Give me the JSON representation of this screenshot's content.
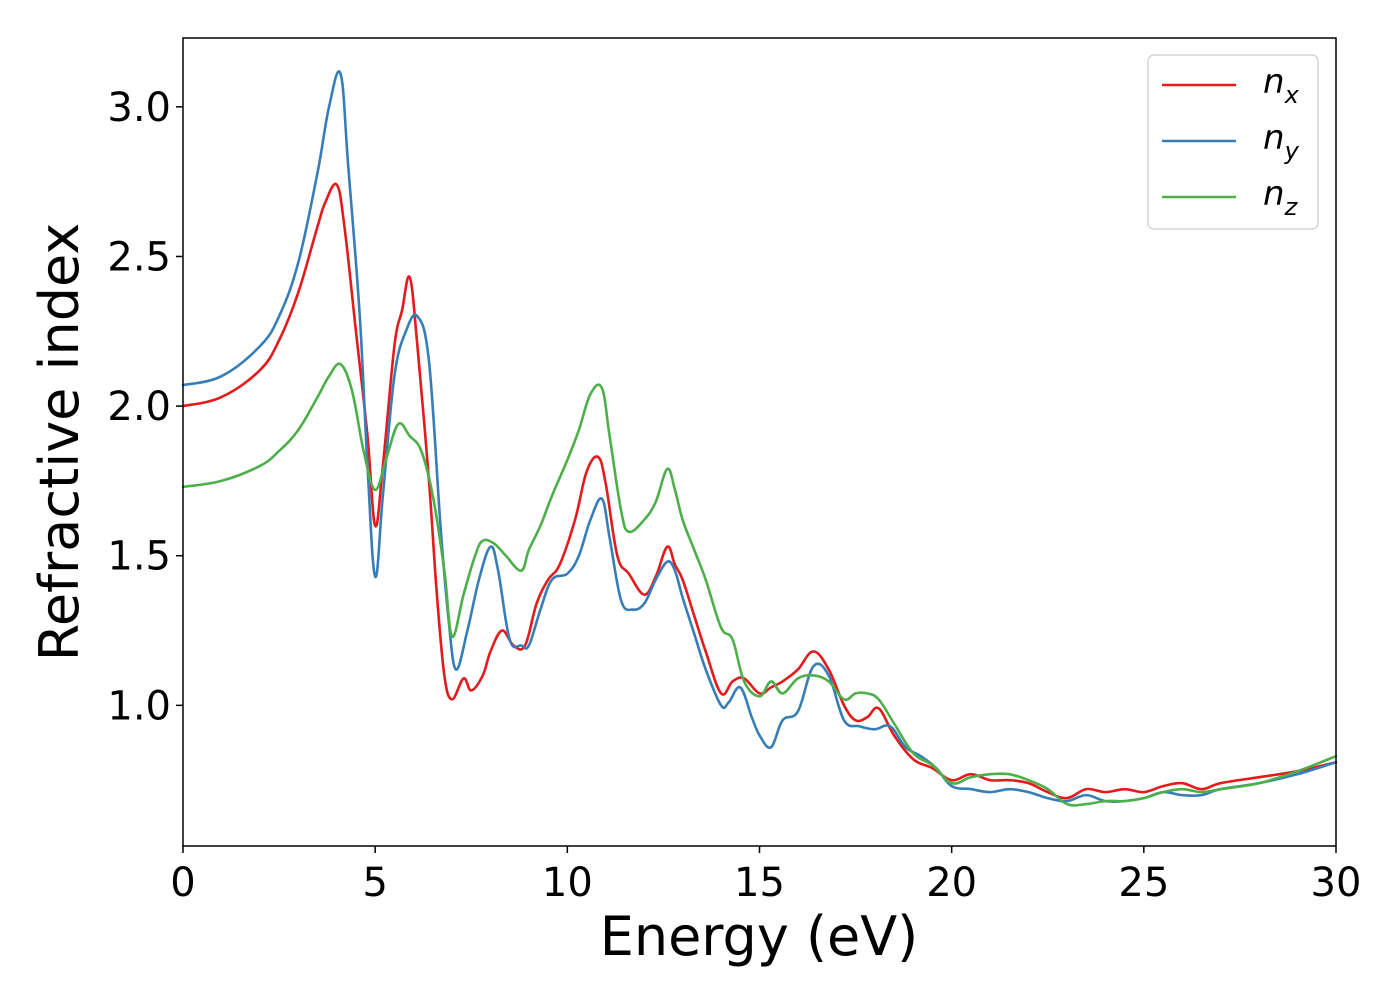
{
  "chart_data": {
    "type": "line",
    "title": "",
    "xlabel": "Energy (eV)",
    "ylabel": "Refractive index",
    "xlim": [
      0,
      30
    ],
    "ylim": [
      0.53,
      3.23
    ],
    "xticks": [
      0,
      5,
      10,
      15,
      20,
      25,
      30
    ],
    "yticks": [
      1.0,
      1.5,
      2.0,
      2.5,
      3.0
    ],
    "xtick_labels": [
      "0",
      "5",
      "10",
      "15",
      "20",
      "25",
      "30"
    ],
    "ytick_labels": [
      "1.0",
      "1.5",
      "2.0",
      "2.5",
      "3.0"
    ],
    "grid": false,
    "legend_position": "top-right",
    "series": [
      {
        "name": "n_x",
        "legend_main": "n",
        "legend_sub": "x",
        "color": "#e41a1c",
        "x": [
          0,
          1,
          2,
          2.5,
          3,
          3.5,
          3.7,
          4.0,
          4.2,
          4.5,
          4.8,
          5.0,
          5.2,
          5.5,
          5.7,
          5.9,
          6.1,
          6.4,
          6.6,
          6.8,
          7.0,
          7.3,
          7.5,
          7.8,
          8.0,
          8.3,
          8.6,
          8.9,
          9.2,
          9.5,
          9.8,
          10.2,
          10.5,
          10.8,
          11.0,
          11.3,
          11.6,
          12.0,
          12.3,
          12.6,
          12.8,
          13.0,
          13.3,
          13.6,
          14.0,
          14.3,
          14.6,
          15.0,
          15.3,
          15.6,
          16.0,
          16.4,
          16.8,
          17.2,
          17.5,
          17.8,
          18.1,
          18.5,
          19.0,
          19.5,
          20.0,
          20.5,
          21.0,
          21.5,
          22.0,
          22.5,
          23.0,
          23.5,
          24.0,
          24.5,
          25.0,
          25.5,
          26.0,
          26.5,
          27.0,
          28.0,
          29.0,
          30.0
        ],
        "y": [
          2.0,
          2.03,
          2.12,
          2.22,
          2.38,
          2.6,
          2.68,
          2.74,
          2.6,
          2.25,
          1.9,
          1.6,
          1.8,
          2.2,
          2.32,
          2.43,
          2.2,
          1.75,
          1.38,
          1.1,
          1.02,
          1.09,
          1.05,
          1.1,
          1.18,
          1.25,
          1.2,
          1.2,
          1.34,
          1.42,
          1.47,
          1.62,
          1.78,
          1.83,
          1.74,
          1.5,
          1.44,
          1.37,
          1.43,
          1.53,
          1.47,
          1.42,
          1.3,
          1.18,
          1.04,
          1.08,
          1.09,
          1.04,
          1.06,
          1.08,
          1.12,
          1.18,
          1.12,
          1.0,
          0.95,
          0.96,
          0.99,
          0.9,
          0.82,
          0.79,
          0.75,
          0.77,
          0.75,
          0.75,
          0.74,
          0.71,
          0.69,
          0.72,
          0.71,
          0.72,
          0.71,
          0.73,
          0.74,
          0.72,
          0.74,
          0.76,
          0.78,
          0.81
        ]
      },
      {
        "name": "n_y",
        "legend_main": "n",
        "legend_sub": "y",
        "color": "#377eb8",
        "x": [
          0,
          1,
          2,
          2.5,
          3,
          3.5,
          3.8,
          4.1,
          4.3,
          4.6,
          4.8,
          5.0,
          5.2,
          5.5,
          5.8,
          6.1,
          6.4,
          6.7,
          6.9,
          7.1,
          7.4,
          7.7,
          8.0,
          8.2,
          8.5,
          8.8,
          9.0,
          9.3,
          9.6,
          10.0,
          10.3,
          10.6,
          10.9,
          11.1,
          11.4,
          11.7,
          12.0,
          12.3,
          12.6,
          12.8,
          13.0,
          13.3,
          13.6,
          14.0,
          14.2,
          14.5,
          14.8,
          15.0,
          15.3,
          15.6,
          16.0,
          16.4,
          16.8,
          17.2,
          17.6,
          18.0,
          18.4,
          18.8,
          19.2,
          19.6,
          20.0,
          20.5,
          21.0,
          21.5,
          22.0,
          22.5,
          23.0,
          23.5,
          24.0,
          24.5,
          25.0,
          25.5,
          26.0,
          26.5,
          27.0,
          28.0,
          29.0,
          30.0
        ],
        "y": [
          2.07,
          2.1,
          2.2,
          2.3,
          2.48,
          2.78,
          3.0,
          3.11,
          2.8,
          2.3,
          1.8,
          1.43,
          1.7,
          2.1,
          2.25,
          2.3,
          2.15,
          1.6,
          1.3,
          1.12,
          1.25,
          1.42,
          1.53,
          1.45,
          1.22,
          1.2,
          1.2,
          1.32,
          1.42,
          1.44,
          1.5,
          1.62,
          1.69,
          1.56,
          1.35,
          1.32,
          1.34,
          1.42,
          1.48,
          1.45,
          1.36,
          1.24,
          1.12,
          1.0,
          1.01,
          1.06,
          0.96,
          0.9,
          0.86,
          0.95,
          0.98,
          1.13,
          1.1,
          0.95,
          0.93,
          0.92,
          0.93,
          0.86,
          0.83,
          0.79,
          0.73,
          0.72,
          0.71,
          0.72,
          0.71,
          0.69,
          0.68,
          0.7,
          0.68,
          0.68,
          0.69,
          0.71,
          0.7,
          0.7,
          0.72,
          0.74,
          0.77,
          0.81
        ]
      },
      {
        "name": "n_z",
        "legend_main": "n",
        "legend_sub": "z",
        "color": "#4daf4a",
        "x": [
          0,
          1,
          2,
          2.5,
          3,
          3.5,
          3.8,
          4.1,
          4.4,
          4.7,
          5.0,
          5.3,
          5.6,
          5.9,
          6.2,
          6.5,
          6.8,
          7.0,
          7.3,
          7.6,
          7.8,
          8.1,
          8.4,
          8.8,
          9.0,
          9.3,
          9.6,
          10.0,
          10.3,
          10.6,
          10.9,
          11.1,
          11.4,
          11.6,
          12.0,
          12.3,
          12.6,
          12.8,
          13.0,
          13.3,
          13.6,
          14.0,
          14.3,
          14.6,
          15.0,
          15.3,
          15.6,
          16.0,
          16.4,
          16.8,
          17.2,
          17.5,
          17.8,
          18.1,
          18.5,
          19.0,
          19.5,
          20.0,
          20.5,
          21.0,
          21.5,
          22.0,
          22.5,
          23.0,
          23.5,
          24.0,
          24.5,
          25.0,
          25.5,
          26.0,
          26.5,
          27.0,
          28.0,
          29.0,
          30.0
        ],
        "y": [
          1.73,
          1.75,
          1.8,
          1.85,
          1.92,
          2.03,
          2.1,
          2.14,
          2.05,
          1.85,
          1.72,
          1.83,
          1.94,
          1.9,
          1.85,
          1.7,
          1.45,
          1.23,
          1.37,
          1.5,
          1.55,
          1.54,
          1.5,
          1.45,
          1.52,
          1.6,
          1.7,
          1.82,
          1.92,
          2.04,
          2.06,
          1.9,
          1.65,
          1.58,
          1.62,
          1.68,
          1.79,
          1.72,
          1.62,
          1.52,
          1.42,
          1.26,
          1.22,
          1.08,
          1.03,
          1.08,
          1.04,
          1.09,
          1.1,
          1.08,
          1.02,
          1.04,
          1.04,
          1.02,
          0.94,
          0.84,
          0.8,
          0.74,
          0.76,
          0.77,
          0.77,
          0.75,
          0.72,
          0.67,
          0.67,
          0.68,
          0.68,
          0.69,
          0.71,
          0.72,
          0.71,
          0.72,
          0.74,
          0.78,
          0.83
        ]
      }
    ]
  }
}
